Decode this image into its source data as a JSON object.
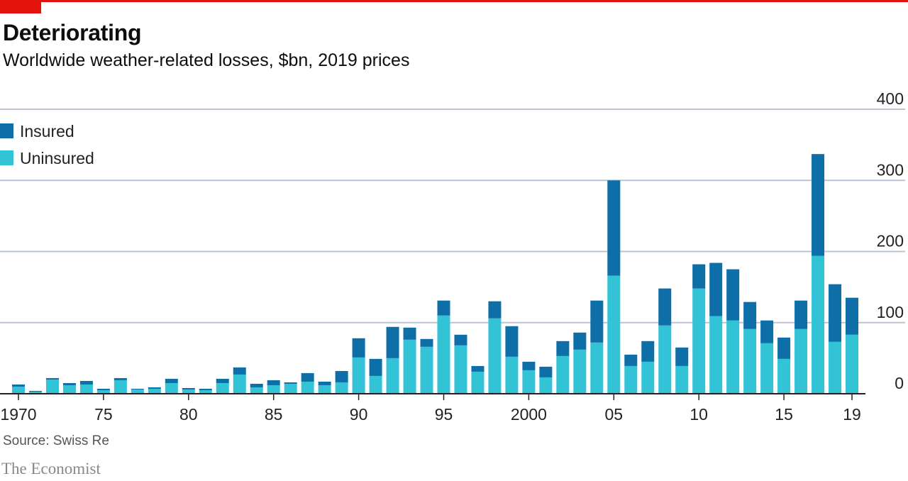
{
  "header": {
    "title": "Deteriorating",
    "subtitle": "Worldwide weather-related losses, $bn, 2019 prices"
  },
  "footer": {
    "source": "Source: Swiss Re",
    "brand": "The Economist"
  },
  "colors": {
    "insured": "#0d6ea8",
    "uninsured": "#33c3d6",
    "grid": "#b9c6d2",
    "axis": "#222222",
    "accent": "#e3120b"
  },
  "chart_data": {
    "type": "bar",
    "stacked": true,
    "grid": true,
    "legend_position": "top-left",
    "y_axis_side": "right",
    "ylim": [
      0,
      400
    ],
    "y_ticks": [
      0,
      100,
      200,
      300,
      400
    ],
    "x_tick_labels": [
      {
        "year": 1970,
        "label": "1970"
      },
      {
        "year": 1975,
        "label": "75"
      },
      {
        "year": 1980,
        "label": "80"
      },
      {
        "year": 1985,
        "label": "85"
      },
      {
        "year": 1990,
        "label": "90"
      },
      {
        "year": 1995,
        "label": "95"
      },
      {
        "year": 2000,
        "label": "2000"
      },
      {
        "year": 2005,
        "label": "05"
      },
      {
        "year": 2010,
        "label": "10"
      },
      {
        "year": 2015,
        "label": "15"
      },
      {
        "year": 2019,
        "label": "19"
      }
    ],
    "categories": [
      1970,
      1971,
      1972,
      1973,
      1974,
      1975,
      1976,
      1977,
      1978,
      1979,
      1980,
      1981,
      1982,
      1983,
      1984,
      1985,
      1986,
      1987,
      1988,
      1989,
      1990,
      1991,
      1992,
      1993,
      1994,
      1995,
      1996,
      1997,
      1998,
      1999,
      2000,
      2001,
      2002,
      2003,
      2004,
      2005,
      2006,
      2007,
      2008,
      2009,
      2010,
      2011,
      2012,
      2013,
      2014,
      2015,
      2016,
      2017,
      2018,
      2019
    ],
    "series": [
      {
        "name": "Uninsured",
        "values": [
          10,
          3,
          20,
          12,
          13,
          5,
          19,
          6,
          7,
          15,
          6,
          5,
          15,
          27,
          9,
          12,
          14,
          17,
          12,
          16,
          51,
          25,
          50,
          76,
          66,
          110,
          68,
          31,
          106,
          52,
          33,
          23,
          53,
          62,
          72,
          166,
          39,
          45,
          96,
          39,
          148,
          109,
          103,
          91,
          71,
          49,
          91,
          194,
          73,
          83
        ]
      },
      {
        "name": "Insured",
        "values": [
          3,
          1,
          2,
          3,
          5,
          2,
          3,
          1,
          2,
          6,
          2,
          2,
          6,
          10,
          5,
          7,
          2,
          12,
          5,
          16,
          27,
          24,
          44,
          17,
          11,
          21,
          15,
          8,
          24,
          43,
          12,
          15,
          21,
          24,
          59,
          134,
          16,
          29,
          52,
          26,
          34,
          75,
          72,
          38,
          32,
          30,
          40,
          143,
          81,
          52
        ]
      }
    ]
  }
}
